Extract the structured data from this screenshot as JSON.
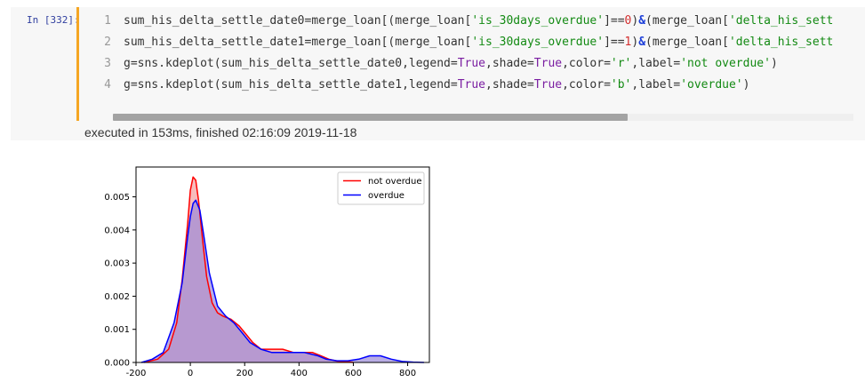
{
  "cell": {
    "prompt": "In [332]:",
    "lines": [
      {
        "num": "1",
        "segments": [
          {
            "t": "sum_his_delta_settle_date0=merge_loan[(merge_loan[",
            "c": ""
          },
          {
            "t": "'is_30days_overdue'",
            "c": "str"
          },
          {
            "t": "]==",
            "c": ""
          },
          {
            "t": "0",
            "c": "num"
          },
          {
            "t": ")",
            "c": ""
          },
          {
            "t": "&",
            "c": "op"
          },
          {
            "t": "(merge_loan[",
            "c": ""
          },
          {
            "t": "'delta_his_sett",
            "c": "str"
          }
        ]
      },
      {
        "num": "2",
        "segments": [
          {
            "t": "sum_his_delta_settle_date1=merge_loan[(merge_loan[",
            "c": ""
          },
          {
            "t": "'is_30days_overdue'",
            "c": "str"
          },
          {
            "t": "]==",
            "c": ""
          },
          {
            "t": "1",
            "c": "num"
          },
          {
            "t": ")",
            "c": ""
          },
          {
            "t": "&",
            "c": "op"
          },
          {
            "t": "(merge_loan[",
            "c": ""
          },
          {
            "t": "'delta_his_sett",
            "c": "str"
          }
        ]
      },
      {
        "num": "3",
        "segments": [
          {
            "t": "g=sns.kdeplot(sum_his_delta_settle_date0,legend=",
            "c": ""
          },
          {
            "t": "True",
            "c": "kw"
          },
          {
            "t": ",shade=",
            "c": ""
          },
          {
            "t": "True",
            "c": "kw"
          },
          {
            "t": ",color=",
            "c": ""
          },
          {
            "t": "'r'",
            "c": "str"
          },
          {
            "t": ",label=",
            "c": ""
          },
          {
            "t": "'not overdue'",
            "c": "str"
          },
          {
            "t": ")",
            "c": ""
          }
        ]
      },
      {
        "num": "4",
        "segments": [
          {
            "t": "g=sns.kdeplot(sum_his_delta_settle_date1,legend=",
            "c": ""
          },
          {
            "t": "True",
            "c": "kw"
          },
          {
            "t": ",shade=",
            "c": ""
          },
          {
            "t": "True",
            "c": "kw"
          },
          {
            "t": ",color=",
            "c": ""
          },
          {
            "t": "'b'",
            "c": "str"
          },
          {
            "t": ",label=",
            "c": ""
          },
          {
            "t": "'overdue'",
            "c": "str"
          },
          {
            "t": ")",
            "c": ""
          }
        ]
      }
    ],
    "exec_status": "executed in 153ms, finished 02:16:09 2019-11-18"
  },
  "chart_data": {
    "type": "area",
    "title": "",
    "xlabel": "",
    "ylabel": "",
    "xlim": [
      -200,
      880
    ],
    "ylim": [
      0,
      0.0059
    ],
    "xticks": [
      -200,
      0,
      200,
      400,
      600,
      800
    ],
    "xtick_labels": [
      "-200",
      "0",
      "200",
      "400",
      "600",
      "800"
    ],
    "yticks": [
      0,
      0.001,
      0.002,
      0.003,
      0.004,
      0.005
    ],
    "ytick_labels": [
      "0.000",
      "0.001",
      "0.002",
      "0.003",
      "0.004",
      "0.005"
    ],
    "legend": {
      "position": "top-right",
      "entries": [
        "not overdue",
        "overdue"
      ]
    },
    "grid": false,
    "series": [
      {
        "name": "not overdue",
        "color": "#ff0000",
        "fill": "#f4a6a6",
        "x": [
          -170,
          -120,
          -80,
          -50,
          -30,
          -10,
          0,
          10,
          20,
          30,
          45,
          60,
          80,
          100,
          120,
          150,
          180,
          200,
          230,
          260,
          300,
          340,
          380,
          420,
          450,
          480,
          510,
          540,
          580,
          600
        ],
        "y": [
          0,
          0.0001,
          0.0004,
          0.0012,
          0.0025,
          0.0042,
          0.0052,
          0.0056,
          0.0055,
          0.0049,
          0.0037,
          0.0026,
          0.0018,
          0.0015,
          0.0014,
          0.0013,
          0.0011,
          0.0009,
          0.0006,
          0.0004,
          0.0004,
          0.0004,
          0.0003,
          0.0003,
          0.0003,
          0.0002,
          0.0001,
          4e-05,
          2e-05,
          0
        ]
      },
      {
        "name": "overdue",
        "color": "#0000ff",
        "fill": "#9b8ad8",
        "x": [
          -180,
          -140,
          -100,
          -60,
          -30,
          -10,
          0,
          10,
          20,
          35,
          50,
          70,
          100,
          130,
          160,
          190,
          220,
          260,
          300,
          360,
          420,
          470,
          500,
          540,
          580,
          620,
          660,
          700,
          740,
          780,
          820,
          860
        ],
        "y": [
          0,
          0.0001,
          0.0003,
          0.0012,
          0.0024,
          0.0038,
          0.0044,
          0.0048,
          0.0049,
          0.0046,
          0.0038,
          0.0027,
          0.0017,
          0.0014,
          0.0012,
          0.0009,
          0.0006,
          0.0004,
          0.0003,
          0.0003,
          0.0003,
          0.0002,
          0.0001,
          5e-05,
          5e-05,
          0.0001,
          0.0002,
          0.0002,
          0.0001,
          3e-05,
          1e-05,
          0
        ]
      }
    ]
  }
}
